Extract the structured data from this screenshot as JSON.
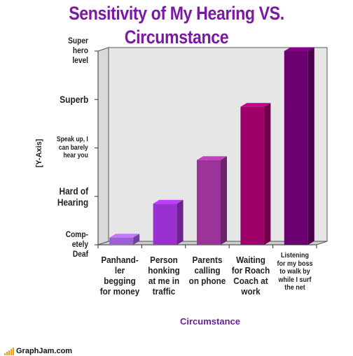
{
  "chart_data": {
    "type": "bar",
    "title": "Sensitivity of My Hearing VS. Circumstance",
    "title_lines": [
      "Sensitivity of My Hearing VS.",
      "Circumstance"
    ],
    "xlabel": "Circumstance",
    "ylabel": "[Y-Axis]",
    "ylim": [
      0,
      4
    ],
    "y_tick_labels": [
      {
        "label": "Comp-\netely\nDeaf",
        "value": 0
      },
      {
        "label": "Hard of\nHearing",
        "value": 1
      },
      {
        "label": "Speak up, I\ncan barely\nhear you",
        "value": 2
      },
      {
        "label": "Superb",
        "value": 3
      },
      {
        "label": "Super\nhero\nlevel",
        "value": 4
      }
    ],
    "categories": [
      "Panhand-\nler\nbegging\nfor money",
      "Person\nhonking\nat me in\ntraffic",
      "Parents\ncalling\non phone",
      "Waiting\nfor Roach\nCoach at\nwork",
      "Listening\nfor my boss\nto walk by\nwhile I surf\nthe net"
    ],
    "values": [
      0.15,
      0.85,
      1.75,
      2.85,
      4.0
    ],
    "colors": [
      "#9d5fd6",
      "#9b30d0",
      "#9c3399",
      "#a0006a",
      "#6b0070"
    ],
    "grid": false,
    "legend": "none"
  },
  "footer": {
    "logo_text": "GraphJam.com"
  }
}
